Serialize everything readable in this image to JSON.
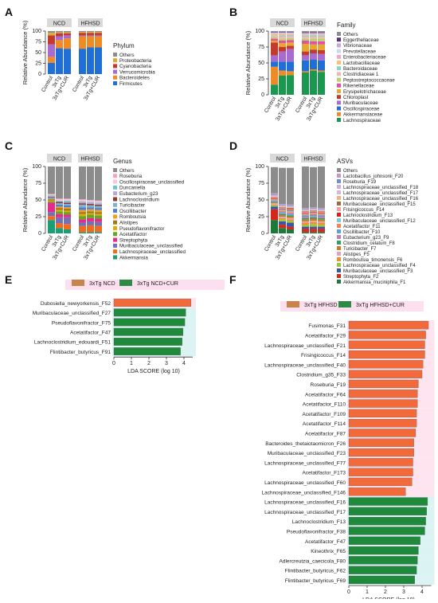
{
  "figure": {
    "panel_letters": [
      "A",
      "B",
      "C",
      "D",
      "E",
      "F"
    ],
    "group_labels": [
      "NCD",
      "HFHSD"
    ],
    "sample_labels": [
      "Control",
      "3xTg",
      "3xTg+CUR"
    ],
    "y_axis_label": "Relative Abundance (%)",
    "lda_axis_label": "LDA SCORE (log 10)"
  },
  "chart_data": [
    {
      "panel": "A",
      "type": "bar",
      "stacked": true,
      "legend_title": "Phylum",
      "ylabel": "Relative Abundance (%)",
      "ylim": [
        0,
        100
      ],
      "y_ticks": [
        0,
        25,
        50,
        75,
        100
      ],
      "groups": [
        "NCD",
        "HFHSD"
      ],
      "categories": [
        "Control",
        "3xTg",
        "3xTg+CUR",
        "Control",
        "3xTg",
        "3xTg+CUR"
      ],
      "series": [
        {
          "name": "Firmicutes",
          "color": "#1f6fd6",
          "values": [
            26,
            60,
            59,
            59,
            62,
            62
          ]
        },
        {
          "name": "Bacteroidetes",
          "color": "#f08a24",
          "values": [
            14,
            19,
            24,
            29,
            26,
            26
          ]
        },
        {
          "name": "Verrucomicrobia",
          "color": "#a86bd1",
          "values": [
            29,
            9,
            7,
            2,
            2,
            2
          ]
        },
        {
          "name": "Cyanobacteria",
          "color": "#c43a2b",
          "values": [
            21,
            7,
            5,
            6,
            6,
            6
          ]
        },
        {
          "name": "Proteobacteria",
          "color": "#e6a92f",
          "values": [
            6,
            2,
            2,
            2,
            2,
            2
          ]
        },
        {
          "name": "Others",
          "color": "#8c8c8c",
          "values": [
            4,
            3,
            3,
            2,
            2,
            2
          ]
        }
      ]
    },
    {
      "panel": "B",
      "type": "bar",
      "stacked": true,
      "legend_title": "Family",
      "ylabel": "Relative Abundance (%)",
      "ylim": [
        0,
        100
      ],
      "y_ticks": [
        0,
        25,
        50,
        75,
        100
      ],
      "groups": [
        "NCD",
        "HFHSD"
      ],
      "categories": [
        "Control",
        "3xTg",
        "3xTg+CUR",
        "Control",
        "3xTg",
        "3xTg+CUR"
      ],
      "series": [
        {
          "name": "Lachnospiraceae",
          "color": "#1a9850",
          "values": [
            16,
            30,
            31,
            35,
            38,
            36
          ]
        },
        {
          "name": "Akkermansiaceae",
          "color": "#f08a24",
          "values": [
            28,
            8,
            6,
            2,
            2,
            2
          ]
        },
        {
          "name": "Oscillospiraceae",
          "color": "#1f6fd6",
          "values": [
            8,
            14,
            15,
            17,
            15,
            16
          ]
        },
        {
          "name": "Muribaculaceae",
          "color": "#a86bd1",
          "values": [
            10,
            16,
            20,
            8,
            10,
            10
          ]
        },
        {
          "name": "Chloroplast",
          "color": "#c43a2b",
          "values": [
            20,
            7,
            5,
            6,
            6,
            6
          ]
        },
        {
          "name": "Erysipelotrichaceae",
          "color": "#e6a92f",
          "values": [
            3,
            6,
            5,
            12,
            8,
            9
          ]
        },
        {
          "name": "Rikenellaceae",
          "color": "#e74fa0",
          "values": [
            3,
            4,
            4,
            5,
            5,
            5
          ]
        },
        {
          "name": "Peptostreptococcaceae",
          "color": "#b7d36b",
          "values": [
            2,
            3,
            3,
            3,
            4,
            4
          ]
        },
        {
          "name": "Clostridiaceae 1",
          "color": "#f2b6b6",
          "values": [
            2,
            3,
            3,
            3,
            3,
            3
          ]
        },
        {
          "name": "Bacteroidaceae",
          "color": "#8dd3c7",
          "values": [
            1,
            2,
            2,
            2,
            2,
            2
          ]
        },
        {
          "name": "Lactobacillaceae",
          "color": "#fdbf6f",
          "values": [
            2,
            2,
            1,
            1,
            1,
            1
          ]
        },
        {
          "name": "Enterobacteriaceae",
          "color": "#f4a6c8",
          "values": [
            1,
            1,
            1,
            1,
            1,
            1
          ]
        },
        {
          "name": "Prevotellaceae",
          "color": "#c7d8ef",
          "values": [
            1,
            1,
            1,
            1,
            1,
            1
          ]
        },
        {
          "name": "Vibrionaceae",
          "color": "#c6a8d8",
          "values": [
            1,
            1,
            1,
            1,
            1,
            1
          ]
        },
        {
          "name": "Eggerthellaceae",
          "color": "#5b2c83",
          "values": [
            1,
            1,
            1,
            1,
            1,
            1
          ]
        },
        {
          "name": "Others",
          "color": "#8c8c8c",
          "values": [
            1,
            1,
            1,
            2,
            2,
            2
          ]
        }
      ]
    },
    {
      "panel": "C",
      "type": "bar",
      "stacked": true,
      "legend_title": "Genus",
      "ylabel": "Relative Abundance (%)",
      "ylim": [
        0,
        100
      ],
      "y_ticks": [
        0,
        25,
        50,
        75,
        100
      ],
      "groups": [
        "NCD",
        "HFHSD"
      ],
      "categories": [
        "Control",
        "3xTg",
        "3xTg+CUR",
        "Control",
        "3xTg",
        "3xTg+CUR"
      ],
      "series": [
        {
          "name": "Akkermansia",
          "color": "#1a9e77",
          "values": [
            20,
            8,
            6,
            2,
            2,
            2
          ]
        },
        {
          "name": "Lachnospiraceae_unclassified",
          "color": "#f26b1d",
          "values": [
            6,
            7,
            8,
            9,
            10,
            9
          ]
        },
        {
          "name": "Muribaculaceae_unclassified",
          "color": "#7570b3",
          "values": [
            6,
            9,
            10,
            5,
            6,
            6
          ]
        },
        {
          "name": "Streptophyta",
          "color": "#e7298a",
          "values": [
            14,
            5,
            4,
            5,
            5,
            5
          ]
        },
        {
          "name": "Acetatifactor",
          "color": "#66a61e",
          "values": [
            2,
            4,
            4,
            5,
            5,
            5
          ]
        },
        {
          "name": "Pseudoflavonifractor",
          "color": "#e6ab02",
          "values": [
            1,
            2,
            2,
            3,
            2,
            2
          ]
        },
        {
          "name": "Alistipes",
          "color": "#a6761d",
          "values": [
            2,
            3,
            3,
            3,
            3,
            3
          ]
        },
        {
          "name": "Romboutsia",
          "color": "#f0a020",
          "values": [
            1,
            2,
            2,
            3,
            3,
            3
          ]
        },
        {
          "name": "Oscillibacter",
          "color": "#4f7fd0",
          "values": [
            1,
            3,
            3,
            4,
            3,
            3
          ]
        },
        {
          "name": "Turicibacter",
          "color": "#80b1d3",
          "values": [
            1,
            2,
            2,
            4,
            3,
            3
          ]
        },
        {
          "name": "Lachnoclostridium",
          "color": "#8c3b2f",
          "values": [
            1,
            2,
            2,
            2,
            2,
            2
          ]
        },
        {
          "name": "Eubacterium_g23",
          "color": "#b8a8d8",
          "values": [
            1,
            1,
            1,
            2,
            2,
            2
          ]
        },
        {
          "name": "Duncaniella",
          "color": "#6cc5d9",
          "values": [
            1,
            1,
            2,
            1,
            1,
            1
          ]
        },
        {
          "name": "Oscillospiraceae_unclassified",
          "color": "#f7c9d8",
          "values": [
            1,
            2,
            2,
            2,
            2,
            2
          ]
        },
        {
          "name": "Roseburia",
          "color": "#f4a3c0",
          "values": [
            1,
            1,
            1,
            1,
            1,
            1
          ]
        },
        {
          "name": "Others",
          "color": "#8c8c8c",
          "values": [
            41,
            48,
            48,
            49,
            50,
            51
          ]
        }
      ]
    },
    {
      "panel": "D",
      "type": "bar",
      "stacked": true,
      "legend_title": "ASVs",
      "ylabel": "Relative Abundance (%)",
      "ylim": [
        0,
        100
      ],
      "y_ticks": [
        0,
        25,
        50,
        75,
        100
      ],
      "groups": [
        "NCD",
        "HFHSD"
      ],
      "categories": [
        "Control",
        "3xTg",
        "3xTg+CUR",
        "Control",
        "3xTg",
        "3xTg+CUR"
      ],
      "series": [
        {
          "name": "Akkermansia_muciniphila_F1",
          "color": "#1b7a3a",
          "values": [
            20,
            8,
            6,
            2,
            2,
            2
          ]
        },
        {
          "name": "Streptophyta_F2",
          "color": "#d9261c",
          "values": [
            16,
            5,
            4,
            5,
            5,
            5
          ]
        },
        {
          "name": "Muribaculaceae_unclassified_F3",
          "color": "#3a56a6",
          "values": [
            4,
            5,
            6,
            3,
            3,
            3
          ]
        },
        {
          "name": "Lachnospiraceae_unclassified_F4",
          "color": "#9bc53d",
          "values": [
            2,
            3,
            3,
            3,
            4,
            3
          ]
        },
        {
          "name": "Romboutsia_timonensis_F6",
          "color": "#f28e2b",
          "values": [
            1,
            2,
            2,
            3,
            3,
            3
          ]
        },
        {
          "name": "Alistipes_F5",
          "color": "#e6a0b8",
          "values": [
            2,
            2,
            2,
            2,
            2,
            2
          ]
        },
        {
          "name": "Turicibacter_F7",
          "color": "#c97a2a",
          "values": [
            1,
            2,
            2,
            3,
            3,
            3
          ]
        },
        {
          "name": "Clostridium_celatum_F8",
          "color": "#2ca25f",
          "values": [
            1,
            2,
            2,
            2,
            2,
            2
          ]
        },
        {
          "name": "Eubacterium_g23_F9",
          "color": "#bc80bd",
          "values": [
            1,
            1,
            1,
            2,
            2,
            2
          ]
        },
        {
          "name": "Oscillibacter_F10",
          "color": "#5aa0dc",
          "values": [
            1,
            2,
            2,
            2,
            2,
            2
          ]
        },
        {
          "name": "Acetatifactor_F11",
          "color": "#ff7f50",
          "values": [
            1,
            2,
            2,
            2,
            2,
            2
          ]
        },
        {
          "name": "Muribaculaceae_unclassified_F12",
          "color": "#7fc8d8",
          "values": [
            1,
            2,
            2,
            1,
            1,
            1
          ]
        },
        {
          "name": "Lachnoclostridium_F13",
          "color": "#e31a1c",
          "values": [
            1,
            1,
            1,
            1,
            1,
            1
          ]
        },
        {
          "name": "Frisingicoccus_F14",
          "color": "#fb9a99",
          "values": [
            1,
            1,
            1,
            1,
            1,
            1
          ]
        },
        {
          "name": "Muribaculaceae_unclassified_F15",
          "color": "#9e6b3e",
          "values": [
            1,
            1,
            2,
            1,
            1,
            1
          ]
        },
        {
          "name": "Lachnospiraceae_unclassified_F16",
          "color": "#f4b183",
          "values": [
            1,
            1,
            1,
            1,
            1,
            1
          ]
        },
        {
          "name": "Lachnospiraceae_unclassified_F17",
          "color": "#d7b5d8",
          "values": [
            1,
            1,
            1,
            1,
            1,
            1
          ]
        },
        {
          "name": "Lachnospiraceae_unclassified_F18",
          "color": "#cab2d6",
          "values": [
            1,
            1,
            1,
            1,
            1,
            1
          ]
        },
        {
          "name": "Roseburia_F19",
          "color": "#6b8fd6",
          "values": [
            1,
            1,
            1,
            1,
            1,
            1
          ]
        },
        {
          "name": "Lactobacillus_johnsonii_F20",
          "color": "#c994c7",
          "values": [
            2,
            1,
            1,
            1,
            1,
            1
          ]
        },
        {
          "name": "Others",
          "color": "#8c8c8c",
          "values": [
            39,
            54,
            55,
            62,
            60,
            62
          ]
        }
      ]
    },
    {
      "panel": "E",
      "type": "bar",
      "orientation": "horizontal",
      "xlabel": "LDA SCORE (log 10)",
      "xlim": [
        0,
        4.5
      ],
      "x_ticks": [
        0,
        1,
        2,
        3,
        4
      ],
      "legend": [
        {
          "name": "3xTg NCD",
          "color": "#c8844a"
        },
        {
          "name": "3xTg NCD+CUR",
          "color": "#2e8b45"
        }
      ],
      "categories": [
        "Dubosiella_newyorkensis_F52",
        "Muribaculaceae_unclassified_F27",
        "Pseudoflavonifractor_F75",
        "Acetatifactor_F47",
        "Lachnoclostridium_edouardi_F51",
        "Flintibacter_butyricus_F91"
      ],
      "groups": [
        "3xTg NCD",
        "3xTg NCD+CUR",
        "3xTg NCD+CUR",
        "3xTg NCD+CUR",
        "3xTg NCD+CUR",
        "3xTg NCD+CUR"
      ],
      "values": [
        4.4,
        4.1,
        4.05,
        3.95,
        3.9,
        3.8
      ]
    },
    {
      "panel": "F",
      "type": "bar",
      "orientation": "horizontal",
      "xlabel": "LDA SCORE (log 10)",
      "xlim": [
        0,
        4.5
      ],
      "x_ticks": [
        0,
        1,
        2,
        3,
        4
      ],
      "legend": [
        {
          "name": "3xTg HFHSD",
          "color": "#c8844a"
        },
        {
          "name": "3xTg HFHSD+CUR",
          "color": "#2e8b45"
        }
      ],
      "categories": [
        "Fusimonas_F31",
        "Acetatifactor_F29",
        "Lachnospiraceae_unclassified_F21",
        "Frisingicoccus_F14",
        "Lachnospiraceae_unclassified_F40",
        "Clostridium_g35_F33",
        "Roseburia_F19",
        "Acetatifactor_F64",
        "Acetatifactor_F110",
        "Acetatifactor_F109",
        "Acetatifactor_F114",
        "Acetatifactor_F87",
        "Bacteroides_thetaiotaomicron_F26",
        "Muribaculaceae_unclassified_F23",
        "Lachnospiraceae_unclassified_F77",
        "Acetatifactor_F173",
        "Lachnospiraceae_unclassified_F60",
        "Lachnospiraceae_unclassified_F146",
        "Lachnospiraceae_unclassified_F16",
        "Lachnospiraceae_unclassified_F17",
        "Lachnoclostridium_F13",
        "Pseudoflavonifractor_F38",
        "Acetatifactor_F47",
        "Kineothrix_F65",
        "Adlercreutzia_caecicola_F80",
        "Flintibacter_butyricus_F62",
        "Flintibacter_butyricus_F69"
      ],
      "groups": [
        "3xTg HFHSD",
        "3xTg HFHSD",
        "3xTg HFHSD",
        "3xTg HFHSD",
        "3xTg HFHSD",
        "3xTg HFHSD",
        "3xTg HFHSD",
        "3xTg HFHSD",
        "3xTg HFHSD",
        "3xTg HFHSD",
        "3xTg HFHSD",
        "3xTg HFHSD",
        "3xTg HFHSD",
        "3xTg HFHSD",
        "3xTg HFHSD",
        "3xTg HFHSD",
        "3xTg HFHSD",
        "3xTg HFHSD",
        "3xTg HFHSD+CUR",
        "3xTg HFHSD+CUR",
        "3xTg HFHSD+CUR",
        "3xTg HFHSD+CUR",
        "3xTg HFHSD+CUR",
        "3xTg HFHSD+CUR",
        "3xTg HFHSD+CUR",
        "3xTg HFHSD+CUR",
        "3xTg HFHSD+CUR"
      ],
      "values": [
        4.35,
        4.2,
        4.15,
        4.15,
        4.05,
        4.0,
        3.8,
        3.75,
        3.75,
        3.7,
        3.7,
        3.65,
        3.55,
        3.55,
        3.5,
        3.5,
        3.45,
        3.1,
        4.3,
        4.25,
        4.2,
        4.15,
        3.9,
        3.8,
        3.75,
        3.7,
        3.6
      ]
    }
  ]
}
